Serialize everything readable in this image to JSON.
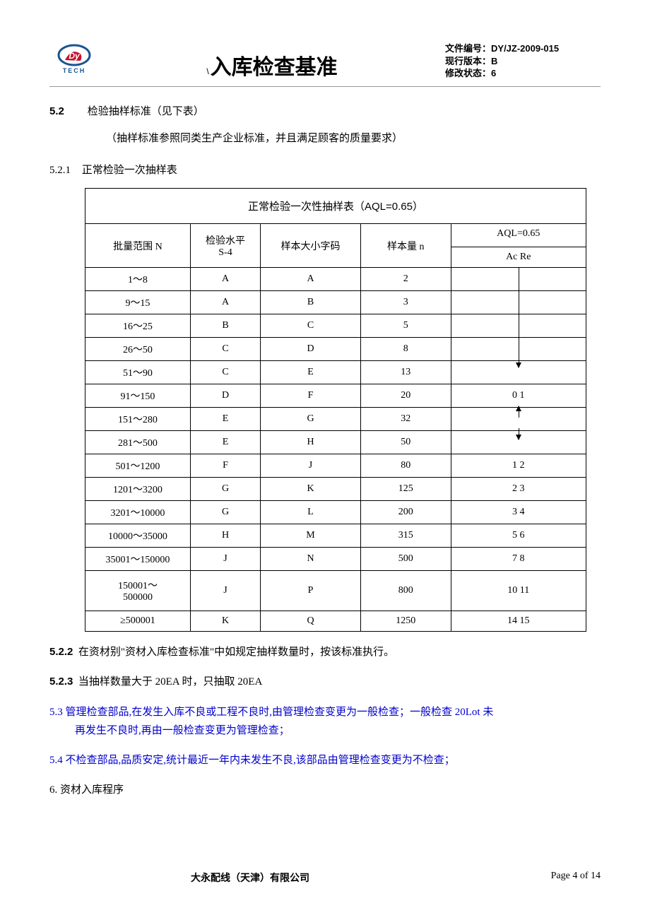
{
  "header": {
    "logo_text": "TECH",
    "title_slash": "\\",
    "title": "入库检查基准",
    "meta": {
      "doc_no_label": "文件编号：",
      "doc_no": "DY/JZ-2009-015",
      "version_label": "现行版本：",
      "version": "B",
      "rev_label": "修改状态：",
      "rev": "6"
    }
  },
  "sections": {
    "s5_2_num": "5.2",
    "s5_2_text": "检验抽样标准（见下表）",
    "s5_2_note": "（抽样标准参照同类生产企业标准，并且满足顾客的质量要求）",
    "s5_2_1_num": "5.2.1",
    "s5_2_1_text": "正常检验一次抽样表",
    "s5_2_2_num": "5.2.2",
    "s5_2_2_text": "在资材别\"资材入库检查标准\"中如规定抽样数量时，按该标准执行。",
    "s5_2_3_num": "5.2.3",
    "s5_2_3_text": "当抽样数量大于 20EA 时，只抽取 20EA",
    "s5_3_num": "5.3",
    "s5_3_text": "管理检查部品,在发生入库不良或工程不良时,由管理检查变更为一般检查；一般检查 20Lot 未",
    "s5_3_text2": "再发生不良时,再由一般检查变更为管理检查；",
    "s5_4_num": "5.4",
    "s5_4_text": "不检查部品,品质安定,统计最近一年内未发生不良,该部品由管理检查变更为不检查；",
    "s6_text": "6. 资材入库程序"
  },
  "table": {
    "title": "正常检验一次性抽样表（AQL=0.65）",
    "headers": {
      "range": "批量范围 N",
      "level": "检验水平\nS-4",
      "code": "样本大小字码",
      "n": "样本量 n",
      "aql_top": "AQL=0.65",
      "aql_sub": "Ac Re"
    },
    "rows": [
      {
        "range": "1～8",
        "level": "A",
        "code": "A",
        "n": "2",
        "aql": ""
      },
      {
        "range": "9～15",
        "level": "A",
        "code": "B",
        "n": "3",
        "aql": ""
      },
      {
        "range": "16～25",
        "level": "B",
        "code": "C",
        "n": "5",
        "aql": ""
      },
      {
        "range": "26～50",
        "level": "C",
        "code": "D",
        "n": "8",
        "aql": ""
      },
      {
        "range": "51～90",
        "level": "C",
        "code": "E",
        "n": "13",
        "aql": ""
      },
      {
        "range": "91～150",
        "level": "D",
        "code": "F",
        "n": "20",
        "aql": "0 1"
      },
      {
        "range": "151～280",
        "level": "E",
        "code": "G",
        "n": "32",
        "aql": ""
      },
      {
        "range": "281～500",
        "level": "E",
        "code": "H",
        "n": "50",
        "aql": ""
      },
      {
        "range": "501～1200",
        "level": "F",
        "code": "J",
        "n": "80",
        "aql": "1 2"
      },
      {
        "range": "1201～3200",
        "level": "G",
        "code": "K",
        "n": "125",
        "aql": "2 3"
      },
      {
        "range": "3201～10000",
        "level": "G",
        "code": "L",
        "n": "200",
        "aql": "3 4"
      },
      {
        "range": "10000～35000",
        "level": "H",
        "code": "M",
        "n": "315",
        "aql": "5 6"
      },
      {
        "range": "35001～150000",
        "level": "J",
        "code": "N",
        "n": "500",
        "aql": "7 8"
      },
      {
        "range": "150001～\n500000",
        "level": "J",
        "code": "P",
        "n": "800",
        "aql": "10 11"
      },
      {
        "range": "≥500001",
        "level": "K",
        "code": "Q",
        "n": "1250",
        "aql": "14 15"
      }
    ]
  },
  "footer": {
    "company": "大永配线（天津）有限公司",
    "page": "Page 4 of 14"
  },
  "colors": {
    "text": "#000000",
    "blue_text": "#0000cc",
    "logo_blue": "#1a5490",
    "logo_red": "#c8102e",
    "border": "#000000"
  }
}
